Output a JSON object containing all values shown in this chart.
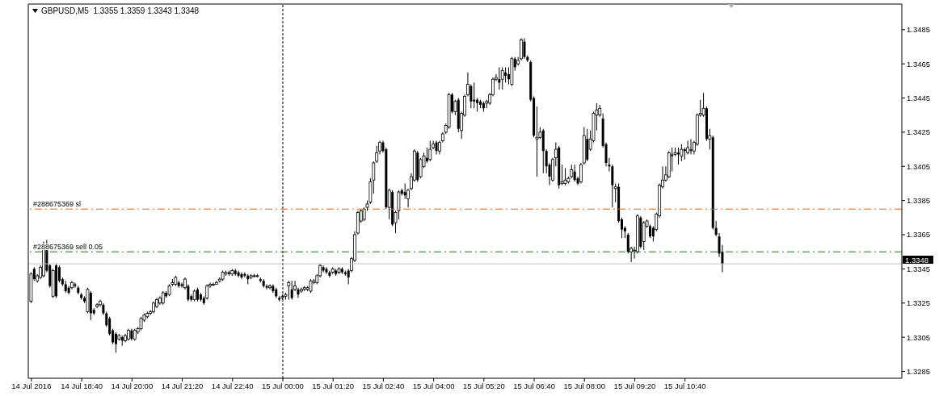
{
  "chart_data": {
    "type": "candlestick",
    "title": "GBPUSD,M5  1.3355 1.3359 1.3343 1.3348",
    "color": "#000000",
    "x": [
      "2016-07-14T17:20",
      "2016-07-14T17:25",
      "2016-07-14T17:30",
      "2016-07-14T17:35",
      "2016-07-14T17:40",
      "2016-07-14T17:45",
      "2016-07-14T17:50",
      "2016-07-14T17:55",
      "2016-07-14T18:00",
      "2016-07-14T18:05",
      "2016-07-14T18:10",
      "2016-07-14T18:15",
      "2016-07-14T18:20",
      "2016-07-14T18:25",
      "2016-07-14T18:30",
      "2016-07-14T18:35",
      "2016-07-14T18:40",
      "2016-07-14T18:45",
      "2016-07-14T18:50",
      "2016-07-14T18:55",
      "2016-07-14T19:00",
      "2016-07-14T19:05",
      "2016-07-14T19:10",
      "2016-07-14T19:15",
      "2016-07-14T19:20",
      "2016-07-14T19:25",
      "2016-07-14T19:30",
      "2016-07-14T19:35",
      "2016-07-14T19:40",
      "2016-07-14T19:45",
      "2016-07-14T19:50",
      "2016-07-14T19:55",
      "2016-07-14T20:00",
      "2016-07-14T20:05",
      "2016-07-14T20:10",
      "2016-07-14T20:15",
      "2016-07-14T20:20",
      "2016-07-14T20:25",
      "2016-07-14T20:30",
      "2016-07-14T20:35",
      "2016-07-14T20:40",
      "2016-07-14T20:45",
      "2016-07-14T20:50",
      "2016-07-14T20:55",
      "2016-07-14T21:00",
      "2016-07-14T21:05",
      "2016-07-14T21:10",
      "2016-07-14T21:15",
      "2016-07-14T21:20",
      "2016-07-14T21:25",
      "2016-07-14T21:30",
      "2016-07-14T21:35",
      "2016-07-14T21:40",
      "2016-07-14T21:45",
      "2016-07-14T21:50",
      "2016-07-14T21:55",
      "2016-07-14T22:00",
      "2016-07-14T22:05",
      "2016-07-14T22:10",
      "2016-07-14T22:15",
      "2016-07-14T22:20",
      "2016-07-14T22:25",
      "2016-07-14T22:30",
      "2016-07-14T22:35",
      "2016-07-14T22:40",
      "2016-07-14T22:45",
      "2016-07-14T22:50",
      "2016-07-14T22:55",
      "2016-07-14T23:00",
      "2016-07-14T23:05",
      "2016-07-14T23:10",
      "2016-07-14T23:15",
      "2016-07-14T23:20",
      "2016-07-14T23:25",
      "2016-07-14T23:30",
      "2016-07-14T23:35",
      "2016-07-14T23:40",
      "2016-07-14T23:45",
      "2016-07-14T23:50",
      "2016-07-14T23:55",
      "2016-07-15T00:00",
      "2016-07-15T00:05",
      "2016-07-15T00:10",
      "2016-07-15T00:15",
      "2016-07-15T00:20",
      "2016-07-15T00:25",
      "2016-07-15T00:30",
      "2016-07-15T00:35",
      "2016-07-15T00:40",
      "2016-07-15T00:45",
      "2016-07-15T00:50",
      "2016-07-15T00:55",
      "2016-07-15T01:00",
      "2016-07-15T01:05",
      "2016-07-15T01:10",
      "2016-07-15T01:15",
      "2016-07-15T01:20",
      "2016-07-15T01:25",
      "2016-07-15T01:30",
      "2016-07-15T01:35",
      "2016-07-15T01:40",
      "2016-07-15T01:45",
      "2016-07-15T01:50",
      "2016-07-15T01:55",
      "2016-07-15T02:00",
      "2016-07-15T02:05",
      "2016-07-15T02:10",
      "2016-07-15T02:15",
      "2016-07-15T02:20",
      "2016-07-15T02:25",
      "2016-07-15T02:30",
      "2016-07-15T02:35",
      "2016-07-15T02:40",
      "2016-07-15T02:45",
      "2016-07-15T02:50",
      "2016-07-15T02:55",
      "2016-07-15T03:00",
      "2016-07-15T03:05",
      "2016-07-15T03:10",
      "2016-07-15T03:15",
      "2016-07-15T03:20",
      "2016-07-15T03:25",
      "2016-07-15T03:30",
      "2016-07-15T03:35",
      "2016-07-15T03:40",
      "2016-07-15T03:45",
      "2016-07-15T03:50",
      "2016-07-15T03:55",
      "2016-07-15T04:00",
      "2016-07-15T04:05",
      "2016-07-15T04:10",
      "2016-07-15T04:15",
      "2016-07-15T04:20",
      "2016-07-15T04:25",
      "2016-07-15T04:30",
      "2016-07-15T04:35",
      "2016-07-15T04:40",
      "2016-07-15T04:45",
      "2016-07-15T04:50",
      "2016-07-15T04:55",
      "2016-07-15T05:00",
      "2016-07-15T05:05",
      "2016-07-15T05:10",
      "2016-07-15T05:15",
      "2016-07-15T05:20",
      "2016-07-15T05:25",
      "2016-07-15T05:30",
      "2016-07-15T05:35",
      "2016-07-15T05:40",
      "2016-07-15T05:45",
      "2016-07-15T05:50",
      "2016-07-15T05:55",
      "2016-07-15T06:00",
      "2016-07-15T06:05",
      "2016-07-15T06:10",
      "2016-07-15T06:15",
      "2016-07-15T06:20",
      "2016-07-15T06:25",
      "2016-07-15T06:30",
      "2016-07-15T06:35",
      "2016-07-15T06:40",
      "2016-07-15T06:45",
      "2016-07-15T06:50",
      "2016-07-15T06:55",
      "2016-07-15T07:00",
      "2016-07-15T07:05",
      "2016-07-15T07:10",
      "2016-07-15T07:15",
      "2016-07-15T07:20",
      "2016-07-15T07:25",
      "2016-07-15T07:30",
      "2016-07-15T07:35",
      "2016-07-15T07:40",
      "2016-07-15T07:45",
      "2016-07-15T07:50",
      "2016-07-15T07:55",
      "2016-07-15T08:00",
      "2016-07-15T08:05",
      "2016-07-15T08:10",
      "2016-07-15T08:15",
      "2016-07-15T08:20",
      "2016-07-15T08:25",
      "2016-07-15T08:30",
      "2016-07-15T08:35",
      "2016-07-15T08:40",
      "2016-07-15T08:45",
      "2016-07-15T08:50",
      "2016-07-15T08:55",
      "2016-07-15T09:00",
      "2016-07-15T09:05",
      "2016-07-15T09:10",
      "2016-07-15T09:15",
      "2016-07-15T09:20",
      "2016-07-15T09:25",
      "2016-07-15T09:30",
      "2016-07-15T09:35",
      "2016-07-15T09:40",
      "2016-07-15T09:45",
      "2016-07-15T09:50",
      "2016-07-15T09:55",
      "2016-07-15T10:00",
      "2016-07-15T10:05",
      "2016-07-15T10:10",
      "2016-07-15T10:15",
      "2016-07-15T10:20",
      "2016-07-15T10:25",
      "2016-07-15T10:30",
      "2016-07-15T10:35",
      "2016-07-15T10:40",
      "2016-07-15T10:45",
      "2016-07-15T10:50",
      "2016-07-15T10:55",
      "2016-07-15T11:00",
      "2016-07-15T11:05",
      "2016-07-15T11:10",
      "2016-07-15T11:15",
      "2016-07-15T11:20",
      "2016-07-15T11:25",
      "2016-07-15T11:30",
      "2016-07-15T11:35",
      "2016-07-15T11:40"
    ],
    "ohlc": [
      [
        1.3326,
        1.3343,
        1.3325,
        1.3342
      ],
      [
        1.3345,
        1.3346,
        1.3338,
        1.3339
      ],
      [
        1.3338,
        1.3342,
        1.3337,
        1.3341
      ],
      [
        1.334,
        1.3347,
        1.3339,
        1.3346
      ],
      [
        1.3341,
        1.3361,
        1.334,
        1.3357
      ],
      [
        1.3356,
        1.3362,
        1.3343,
        1.3344
      ],
      [
        1.3347,
        1.3348,
        1.3334,
        1.3335
      ],
      [
        1.3329,
        1.3345,
        1.3328,
        1.3344
      ],
      [
        1.3347,
        1.3348,
        1.3328,
        1.3329
      ],
      [
        1.3346,
        1.3347,
        1.3337,
        1.3338
      ],
      [
        1.3339,
        1.334,
        1.3335,
        1.3336
      ],
      [
        1.3336,
        1.3338,
        1.3331,
        1.3332
      ],
      [
        1.3334,
        1.3335,
        1.333,
        1.3331
      ],
      [
        1.3334,
        1.3338,
        1.3333,
        1.3337
      ],
      [
        1.3336,
        1.3337,
        1.3334,
        1.3335
      ],
      [
        1.3334,
        1.3335,
        1.333,
        1.3331
      ],
      [
        1.333,
        1.3331,
        1.3327,
        1.3328
      ],
      [
        1.3328,
        1.3329,
        1.3325,
        1.3326
      ],
      [
        1.332,
        1.3334,
        1.3319,
        1.3333
      ],
      [
        1.3331,
        1.3332,
        1.3315,
        1.3319
      ],
      [
        1.3321,
        1.3322,
        1.3318,
        1.3319
      ],
      [
        1.3323,
        1.3325,
        1.3322,
        1.3324
      ],
      [
        1.3324,
        1.3327,
        1.3323,
        1.3326
      ],
      [
        1.3324,
        1.3325,
        1.3318,
        1.3319
      ],
      [
        1.3319,
        1.332,
        1.3311,
        1.3312
      ],
      [
        1.3316,
        1.3317,
        1.3306,
        1.3307
      ],
      [
        1.3309,
        1.331,
        1.3301,
        1.3302
      ],
      [
        1.3307,
        1.3308,
        1.3296,
        1.3301
      ],
      [
        1.3304,
        1.3307,
        1.3303,
        1.3306
      ],
      [
        1.3305,
        1.3306,
        1.33,
        1.3303
      ],
      [
        1.3303,
        1.3307,
        1.3302,
        1.3306
      ],
      [
        1.3304,
        1.331,
        1.3303,
        1.3309
      ],
      [
        1.3309,
        1.331,
        1.3303,
        1.3304
      ],
      [
        1.3304,
        1.331,
        1.3303,
        1.3309
      ],
      [
        1.3308,
        1.3311,
        1.3307,
        1.331
      ],
      [
        1.331,
        1.3317,
        1.3309,
        1.3316
      ],
      [
        1.3315,
        1.3319,
        1.3314,
        1.3318
      ],
      [
        1.3317,
        1.332,
        1.3316,
        1.3319
      ],
      [
        1.3319,
        1.3321,
        1.3318,
        1.332
      ],
      [
        1.332,
        1.3326,
        1.3319,
        1.3325
      ],
      [
        1.3323,
        1.3328,
        1.3322,
        1.3327
      ],
      [
        1.3325,
        1.3329,
        1.3324,
        1.3328
      ],
      [
        1.3325,
        1.3332,
        1.3324,
        1.3331
      ],
      [
        1.3331,
        1.3332,
        1.3328,
        1.3329
      ],
      [
        1.333,
        1.3336,
        1.3329,
        1.3335
      ],
      [
        1.3336,
        1.3339,
        1.3335,
        1.3337
      ],
      [
        1.3336,
        1.3341,
        1.3335,
        1.334
      ],
      [
        1.3337,
        1.3338,
        1.3334,
        1.3335
      ],
      [
        1.3336,
        1.3337,
        1.3334,
        1.3335
      ],
      [
        1.3334,
        1.334,
        1.3333,
        1.3339
      ],
      [
        1.3335,
        1.3336,
        1.3326,
        1.3327
      ],
      [
        1.3329,
        1.333,
        1.3326,
        1.3327
      ],
      [
        1.3327,
        1.3333,
        1.3326,
        1.3332
      ],
      [
        1.3333,
        1.3334,
        1.3326,
        1.3327
      ],
      [
        1.333,
        1.3331,
        1.3326,
        1.3327
      ],
      [
        1.3328,
        1.3329,
        1.3324,
        1.3325
      ],
      [
        1.3328,
        1.3336,
        1.3327,
        1.3335
      ],
      [
        1.3335,
        1.3337,
        1.3334,
        1.3336
      ],
      [
        1.3336,
        1.3337,
        1.3335,
        1.3336
      ],
      [
        1.3336,
        1.3338,
        1.3336,
        1.3337
      ],
      [
        1.3338,
        1.334,
        1.3337,
        1.3339
      ],
      [
        1.3339,
        1.3344,
        1.3338,
        1.3343
      ],
      [
        1.3342,
        1.3344,
        1.3341,
        1.3343
      ],
      [
        1.3343,
        1.3344,
        1.3341,
        1.3342
      ],
      [
        1.3342,
        1.3345,
        1.3341,
        1.3344
      ],
      [
        1.3344,
        1.3345,
        1.3341,
        1.3342
      ],
      [
        1.3343,
        1.3344,
        1.334,
        1.3341
      ],
      [
        1.3342,
        1.3343,
        1.3339,
        1.334
      ],
      [
        1.3342,
        1.3343,
        1.334,
        1.3341
      ],
      [
        1.3341,
        1.3342,
        1.3336,
        1.3339
      ],
      [
        1.334,
        1.3342,
        1.3339,
        1.3341
      ],
      [
        1.3341,
        1.3342,
        1.334,
        1.3341
      ],
      [
        1.3341,
        1.3342,
        1.334,
        1.3341
      ],
      [
        1.3339,
        1.334,
        1.3337,
        1.3338
      ],
      [
        1.3338,
        1.3339,
        1.3334,
        1.3335
      ],
      [
        1.3335,
        1.3336,
        1.3333,
        1.3334
      ],
      [
        1.3334,
        1.3336,
        1.3333,
        1.3335
      ],
      [
        1.3335,
        1.3336,
        1.3331,
        1.3332
      ],
      [
        1.3333,
        1.3334,
        1.3328,
        1.3329
      ],
      [
        1.3328,
        1.3329,
        1.3326,
        1.3327
      ],
      [
        1.3328,
        1.333,
        1.3327,
        1.3329
      ],
      [
        1.3329,
        1.3331,
        1.3327,
        1.333
      ],
      [
        1.3335,
        1.3338,
        1.3327,
        1.3337
      ],
      [
        1.3333,
        1.3338,
        1.3327,
        1.3328
      ],
      [
        1.3333,
        1.3338,
        1.3332,
        1.3335
      ],
      [
        1.3333,
        1.3334,
        1.3328,
        1.333
      ],
      [
        1.3332,
        1.3334,
        1.3331,
        1.3333
      ],
      [
        1.3333,
        1.3335,
        1.3332,
        1.3334
      ],
      [
        1.3333,
        1.3335,
        1.3332,
        1.3334
      ],
      [
        1.3332,
        1.3339,
        1.3331,
        1.3338
      ],
      [
        1.3337,
        1.3339,
        1.3336,
        1.3338
      ],
      [
        1.3337,
        1.3342,
        1.3336,
        1.3341
      ],
      [
        1.3341,
        1.3348,
        1.334,
        1.3347
      ],
      [
        1.3346,
        1.3347,
        1.3343,
        1.3344
      ],
      [
        1.3345,
        1.3346,
        1.3342,
        1.3343
      ],
      [
        1.3343,
        1.3344,
        1.334,
        1.3341
      ],
      [
        1.3343,
        1.3346,
        1.3342,
        1.3345
      ],
      [
        1.3344,
        1.3345,
        1.3341,
        1.3342
      ],
      [
        1.3343,
        1.3346,
        1.3342,
        1.3345
      ],
      [
        1.3345,
        1.3346,
        1.3342,
        1.3343
      ],
      [
        1.3343,
        1.3344,
        1.3341,
        1.3342
      ],
      [
        1.3344,
        1.3345,
        1.3336,
        1.334
      ],
      [
        1.3344,
        1.3352,
        1.3343,
        1.3351
      ],
      [
        1.335,
        1.3367,
        1.3349,
        1.3365
      ],
      [
        1.3366,
        1.3379,
        1.3365,
        1.3378
      ],
      [
        1.3373,
        1.338,
        1.3372,
        1.3379
      ],
      [
        1.3374,
        1.3381,
        1.3373,
        1.338
      ],
      [
        1.3381,
        1.3385,
        1.3379,
        1.3383
      ],
      [
        1.3384,
        1.3398,
        1.3383,
        1.3396
      ],
      [
        1.3397,
        1.3408,
        1.3389,
        1.3407
      ],
      [
        1.3408,
        1.3417,
        1.3407,
        1.3413
      ],
      [
        1.3414,
        1.342,
        1.3412,
        1.3419
      ],
      [
        1.3419,
        1.342,
        1.3413,
        1.3414
      ],
      [
        1.3415,
        1.3416,
        1.338,
        1.3381
      ],
      [
        1.3381,
        1.3392,
        1.3374,
        1.3391
      ],
      [
        1.339,
        1.3391,
        1.337,
        1.3371
      ],
      [
        1.3372,
        1.3379,
        1.3366,
        1.3378
      ],
      [
        1.3379,
        1.3391,
        1.3374,
        1.339
      ],
      [
        1.3391,
        1.3392,
        1.3388,
        1.3389
      ],
      [
        1.339,
        1.3395,
        1.3386,
        1.3388
      ],
      [
        1.3386,
        1.3392,
        1.3381,
        1.3391
      ],
      [
        1.3392,
        1.3401,
        1.3391,
        1.3399
      ],
      [
        1.3397,
        1.3415,
        1.3396,
        1.3414
      ],
      [
        1.3413,
        1.3414,
        1.3396,
        1.3397
      ],
      [
        1.3399,
        1.341,
        1.3398,
        1.3409
      ],
      [
        1.3405,
        1.3413,
        1.3404,
        1.3411
      ],
      [
        1.341,
        1.3416,
        1.3407,
        1.3408
      ],
      [
        1.3409,
        1.342,
        1.3408,
        1.3415
      ],
      [
        1.3416,
        1.342,
        1.3415,
        1.3418
      ],
      [
        1.3419,
        1.342,
        1.3412,
        1.3414
      ],
      [
        1.3414,
        1.342,
        1.3412,
        1.3419
      ],
      [
        1.342,
        1.3425,
        1.3419,
        1.3424
      ],
      [
        1.3425,
        1.343,
        1.3424,
        1.3429
      ],
      [
        1.3428,
        1.3448,
        1.3427,
        1.3447
      ],
      [
        1.3447,
        1.3448,
        1.3436,
        1.3437
      ],
      [
        1.3437,
        1.3444,
        1.3435,
        1.3443
      ],
      [
        1.3444,
        1.3445,
        1.3425,
        1.3427
      ],
      [
        1.3426,
        1.3437,
        1.3421,
        1.3436
      ],
      [
        1.3435,
        1.3447,
        1.3434,
        1.3446
      ],
      [
        1.3447,
        1.346,
        1.3446,
        1.3453
      ],
      [
        1.3452,
        1.3453,
        1.3439,
        1.3443
      ],
      [
        1.3444,
        1.3454,
        1.3439,
        1.3443
      ],
      [
        1.3444,
        1.3445,
        1.3437,
        1.3442
      ],
      [
        1.3443,
        1.3444,
        1.3439,
        1.3441
      ],
      [
        1.3442,
        1.3443,
        1.3437,
        1.3439
      ],
      [
        1.3442,
        1.3444,
        1.3439,
        1.3443
      ],
      [
        1.3442,
        1.3448,
        1.3441,
        1.3447
      ],
      [
        1.3447,
        1.3457,
        1.3446,
        1.3456
      ],
      [
        1.3456,
        1.3459,
        1.3455,
        1.3457
      ],
      [
        1.3456,
        1.3463,
        1.345,
        1.3454
      ],
      [
        1.3456,
        1.3463,
        1.345,
        1.3461
      ],
      [
        1.346,
        1.3463,
        1.3454,
        1.3458
      ],
      [
        1.3459,
        1.3463,
        1.3453,
        1.3456
      ],
      [
        1.3453,
        1.3469,
        1.3452,
        1.3468
      ],
      [
        1.3468,
        1.3469,
        1.3461,
        1.3463
      ],
      [
        1.3465,
        1.3469,
        1.3464,
        1.3467
      ],
      [
        1.3468,
        1.348,
        1.3467,
        1.3479
      ],
      [
        1.3478,
        1.348,
        1.3468,
        1.3469
      ],
      [
        1.3469,
        1.347,
        1.3466,
        1.3467
      ],
      [
        1.3466,
        1.3467,
        1.3443,
        1.3444
      ],
      [
        1.3445,
        1.3446,
        1.3422,
        1.3423
      ],
      [
        1.3421,
        1.344,
        1.3399,
        1.3422
      ],
      [
        1.3422,
        1.3428,
        1.3421,
        1.3425
      ],
      [
        1.3426,
        1.3427,
        1.3401,
        1.3414
      ],
      [
        1.3414,
        1.3415,
        1.3401,
        1.3405
      ],
      [
        1.3406,
        1.3407,
        1.3394,
        1.3399
      ],
      [
        1.3397,
        1.341,
        1.3396,
        1.3409
      ],
      [
        1.341,
        1.3419,
        1.3405,
        1.3415
      ],
      [
        1.3416,
        1.3417,
        1.3392,
        1.3394
      ],
      [
        1.3395,
        1.3406,
        1.3394,
        1.3396
      ],
      [
        1.3395,
        1.3404,
        1.3394,
        1.3397
      ],
      [
        1.3396,
        1.3399,
        1.3395,
        1.3398
      ],
      [
        1.3399,
        1.3406,
        1.3398,
        1.3403
      ],
      [
        1.3402,
        1.3406,
        1.3396,
        1.3397
      ],
      [
        1.3398,
        1.3399,
        1.3394,
        1.3395
      ],
      [
        1.3396,
        1.3407,
        1.3395,
        1.3406
      ],
      [
        1.3407,
        1.3428,
        1.3406,
        1.3423
      ],
      [
        1.3421,
        1.3427,
        1.3408,
        1.3409
      ],
      [
        1.3415,
        1.3426,
        1.3414,
        1.3421
      ],
      [
        1.342,
        1.3437,
        1.3419,
        1.3436
      ],
      [
        1.3435,
        1.3442,
        1.3426,
        1.3438
      ],
      [
        1.3435,
        1.3441,
        1.3434,
        1.3439
      ],
      [
        1.3433,
        1.3436,
        1.3416,
        1.3417
      ],
      [
        1.3418,
        1.3419,
        1.3405,
        1.3407
      ],
      [
        1.3406,
        1.341,
        1.3402,
        1.3405
      ],
      [
        1.3405,
        1.3406,
        1.3381,
        1.3394
      ],
      [
        1.3392,
        1.3395,
        1.3384,
        1.3393
      ],
      [
        1.3393,
        1.3395,
        1.3372,
        1.3373
      ],
      [
        1.3374,
        1.3375,
        1.3363,
        1.3368
      ],
      [
        1.3369,
        1.337,
        1.3363,
        1.3367
      ],
      [
        1.3365,
        1.3366,
        1.3354,
        1.3355
      ],
      [
        1.3355,
        1.3358,
        1.3349,
        1.3357
      ],
      [
        1.3356,
        1.3358,
        1.3351,
        1.3356
      ],
      [
        1.3355,
        1.3377,
        1.3354,
        1.3376
      ],
      [
        1.3375,
        1.3376,
        1.3357,
        1.3358
      ],
      [
        1.3361,
        1.3373,
        1.3356,
        1.3372
      ],
      [
        1.337,
        1.3374,
        1.3369,
        1.3373
      ],
      [
        1.337,
        1.3371,
        1.3363,
        1.3364
      ],
      [
        1.3369,
        1.337,
        1.3361,
        1.3364
      ],
      [
        1.3368,
        1.3378,
        1.3367,
        1.3377
      ],
      [
        1.3376,
        1.3395,
        1.3375,
        1.3394
      ],
      [
        1.3393,
        1.3405,
        1.3392,
        1.3397
      ],
      [
        1.3397,
        1.3405,
        1.3396,
        1.34
      ],
      [
        1.3399,
        1.3414,
        1.3398,
        1.3413
      ],
      [
        1.3412,
        1.3416,
        1.3402,
        1.3411
      ],
      [
        1.3412,
        1.3416,
        1.3411,
        1.3413
      ],
      [
        1.3413,
        1.3416,
        1.3406,
        1.3412
      ],
      [
        1.3411,
        1.3418,
        1.3408,
        1.3415
      ],
      [
        1.3415,
        1.3416,
        1.3409,
        1.3414
      ],
      [
        1.3413,
        1.342,
        1.3412,
        1.3416
      ],
      [
        1.3415,
        1.3421,
        1.3412,
        1.3414
      ],
      [
        1.3414,
        1.342,
        1.3412,
        1.3419
      ],
      [
        1.3418,
        1.3436,
        1.3417,
        1.3435
      ],
      [
        1.3435,
        1.3444,
        1.3434,
        1.3436
      ],
      [
        1.3435,
        1.3448,
        1.3434,
        1.3439
      ],
      [
        1.3439,
        1.344,
        1.342,
        1.3421
      ],
      [
        1.3421,
        1.3427,
        1.3415,
        1.3423
      ],
      [
        1.3422,
        1.3423,
        1.3368,
        1.3369
      ],
      [
        1.3369,
        1.3373,
        1.3364,
        1.3365
      ],
      [
        1.3364,
        1.3366,
        1.3352,
        1.3354
      ],
      [
        1.3355,
        1.3359,
        1.3343,
        1.3348
      ]
    ],
    "xlim": [
      "2016-07-14T17:15",
      "2016-07-15T16:25"
    ],
    "xticks": [
      {
        "value": "2016-07-14T17:20",
        "label": "14 Jul 2016"
      },
      {
        "value": "2016-07-14T18:40",
        "label": "14 Jul 18:40"
      },
      {
        "value": "2016-07-14T20:00",
        "label": "14 Jul 20:00"
      },
      {
        "value": "2016-07-14T21:20",
        "label": "14 Jul 21:20"
      },
      {
        "value": "2016-07-14T22:40",
        "label": "14 Jul 22:40"
      },
      {
        "value": "2016-07-15T00:00",
        "label": "15 Jul 00:00"
      },
      {
        "value": "2016-07-15T01:20",
        "label": "15 Jul 01:20"
      },
      {
        "value": "2016-07-15T02:40",
        "label": "15 Jul 02:40"
      },
      {
        "value": "2016-07-15T04:00",
        "label": "15 Jul 04:00"
      },
      {
        "value": "2016-07-15T05:20",
        "label": "15 Jul 05:20"
      },
      {
        "value": "2016-07-15T06:40",
        "label": "15 Jul 06:40"
      },
      {
        "value": "2016-07-15T08:00",
        "label": "15 Jul 08:00"
      },
      {
        "value": "2016-07-15T09:20",
        "label": "15 Jul 09:20"
      },
      {
        "value": "2016-07-15T10:40",
        "label": "15 Jul 10:40"
      }
    ],
    "ylim": [
      1.3281,
      1.35
    ],
    "yticks": [
      1.3285,
      1.3305,
      1.3325,
      1.3345,
      1.3365,
      1.3385,
      1.3405,
      1.3425,
      1.3445,
      1.3465,
      1.3485
    ],
    "ref_lines": [
      {
        "axis": "x",
        "value": "2016-07-15T00:00",
        "color": "#000000",
        "line_style": "dotted"
      },
      {
        "axis": "y",
        "value": 1.338,
        "label": "#288675369 sl",
        "color": "#d2691e",
        "line_style": "dashed"
      },
      {
        "axis": "y",
        "value": 1.3355,
        "label": "#288675369 sell 0.05",
        "color": "#1a7a1a",
        "line_style": "dashed"
      },
      {
        "axis": "y",
        "value": 1.3348,
        "label": "1.3348",
        "color": "#c0c0c0",
        "line_style": "solid"
      }
    ]
  }
}
